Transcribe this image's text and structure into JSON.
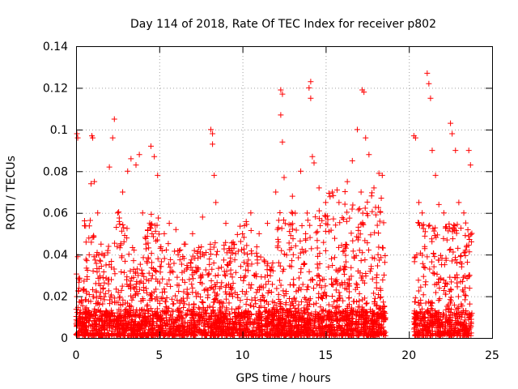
{
  "chart_data": {
    "type": "scatter",
    "title": "Day 114 of 2018, Rate Of TEC Index for receiver p802",
    "xlabel": "GPS time / hours",
    "ylabel": "ROTI / TECUs",
    "xlim": [
      0,
      25
    ],
    "ylim": [
      0,
      0.14
    ],
    "xticks": [
      0,
      5,
      10,
      15,
      20,
      25
    ],
    "yticks": [
      0,
      0.02,
      0.04,
      0.06,
      0.08,
      0.1,
      0.12,
      0.14
    ],
    "grid": true,
    "marker": "+",
    "color": "#ff0000",
    "data_gap_hours": [
      18.6,
      20.3
    ],
    "series": [
      {
        "name": "ROTI",
        "points": [
          [
            0.05,
            0.098
          ],
          [
            0.1,
            0.096
          ],
          [
            0.1,
            0.039
          ],
          [
            0.2,
            0.028
          ],
          [
            0.6,
            0.046
          ],
          [
            0.9,
            0.074
          ],
          [
            0.95,
            0.097
          ],
          [
            1.0,
            0.096
          ],
          [
            1.1,
            0.075
          ],
          [
            1.3,
            0.06
          ],
          [
            1.5,
            0.045
          ],
          [
            1.8,
            0.035
          ],
          [
            2.0,
            0.082
          ],
          [
            2.2,
            0.096
          ],
          [
            2.3,
            0.105
          ],
          [
            2.5,
            0.06
          ],
          [
            2.8,
            0.07
          ],
          [
            3.1,
            0.08
          ],
          [
            3.3,
            0.086
          ],
          [
            3.6,
            0.083
          ],
          [
            3.8,
            0.088
          ],
          [
            4.0,
            0.06
          ],
          [
            4.2,
            0.045
          ],
          [
            4.5,
            0.092
          ],
          [
            4.7,
            0.087
          ],
          [
            4.9,
            0.078
          ],
          [
            5.3,
            0.05
          ],
          [
            5.6,
            0.055
          ],
          [
            6.0,
            0.052
          ],
          [
            6.5,
            0.045
          ],
          [
            7.0,
            0.05
          ],
          [
            7.6,
            0.058
          ],
          [
            8.1,
            0.1
          ],
          [
            8.2,
            0.098
          ],
          [
            8.2,
            0.093
          ],
          [
            8.3,
            0.078
          ],
          [
            8.4,
            0.065
          ],
          [
            9.0,
            0.055
          ],
          [
            9.5,
            0.045
          ],
          [
            10.0,
            0.05
          ],
          [
            10.5,
            0.06
          ],
          [
            11.0,
            0.05
          ],
          [
            11.5,
            0.055
          ],
          [
            12.0,
            0.07
          ],
          [
            12.3,
            0.119
          ],
          [
            12.4,
            0.117
          ],
          [
            12.3,
            0.107
          ],
          [
            12.4,
            0.094
          ],
          [
            12.5,
            0.077
          ],
          [
            13.0,
            0.068
          ],
          [
            13.5,
            0.08
          ],
          [
            14.0,
            0.12
          ],
          [
            14.1,
            0.123
          ],
          [
            14.1,
            0.115
          ],
          [
            14.2,
            0.087
          ],
          [
            14.3,
            0.084
          ],
          [
            14.6,
            0.072
          ],
          [
            15.0,
            0.065
          ],
          [
            15.4,
            0.07
          ],
          [
            15.8,
            0.065
          ],
          [
            16.3,
            0.075
          ],
          [
            16.6,
            0.085
          ],
          [
            16.9,
            0.1
          ],
          [
            17.2,
            0.119
          ],
          [
            17.3,
            0.118
          ],
          [
            17.4,
            0.096
          ],
          [
            17.6,
            0.088
          ],
          [
            17.9,
            0.072
          ],
          [
            18.2,
            0.079
          ],
          [
            18.4,
            0.078
          ],
          [
            20.3,
            0.097
          ],
          [
            20.4,
            0.096
          ],
          [
            20.6,
            0.065
          ],
          [
            20.8,
            0.06
          ],
          [
            21.1,
            0.127
          ],
          [
            21.2,
            0.122
          ],
          [
            21.3,
            0.115
          ],
          [
            21.4,
            0.09
          ],
          [
            21.6,
            0.078
          ],
          [
            21.8,
            0.064
          ],
          [
            22.1,
            0.06
          ],
          [
            22.5,
            0.103
          ],
          [
            22.6,
            0.098
          ],
          [
            22.8,
            0.09
          ],
          [
            23.0,
            0.065
          ],
          [
            23.3,
            0.06
          ],
          [
            23.6,
            0.09
          ],
          [
            23.7,
            0.083
          ]
        ]
      }
    ]
  }
}
